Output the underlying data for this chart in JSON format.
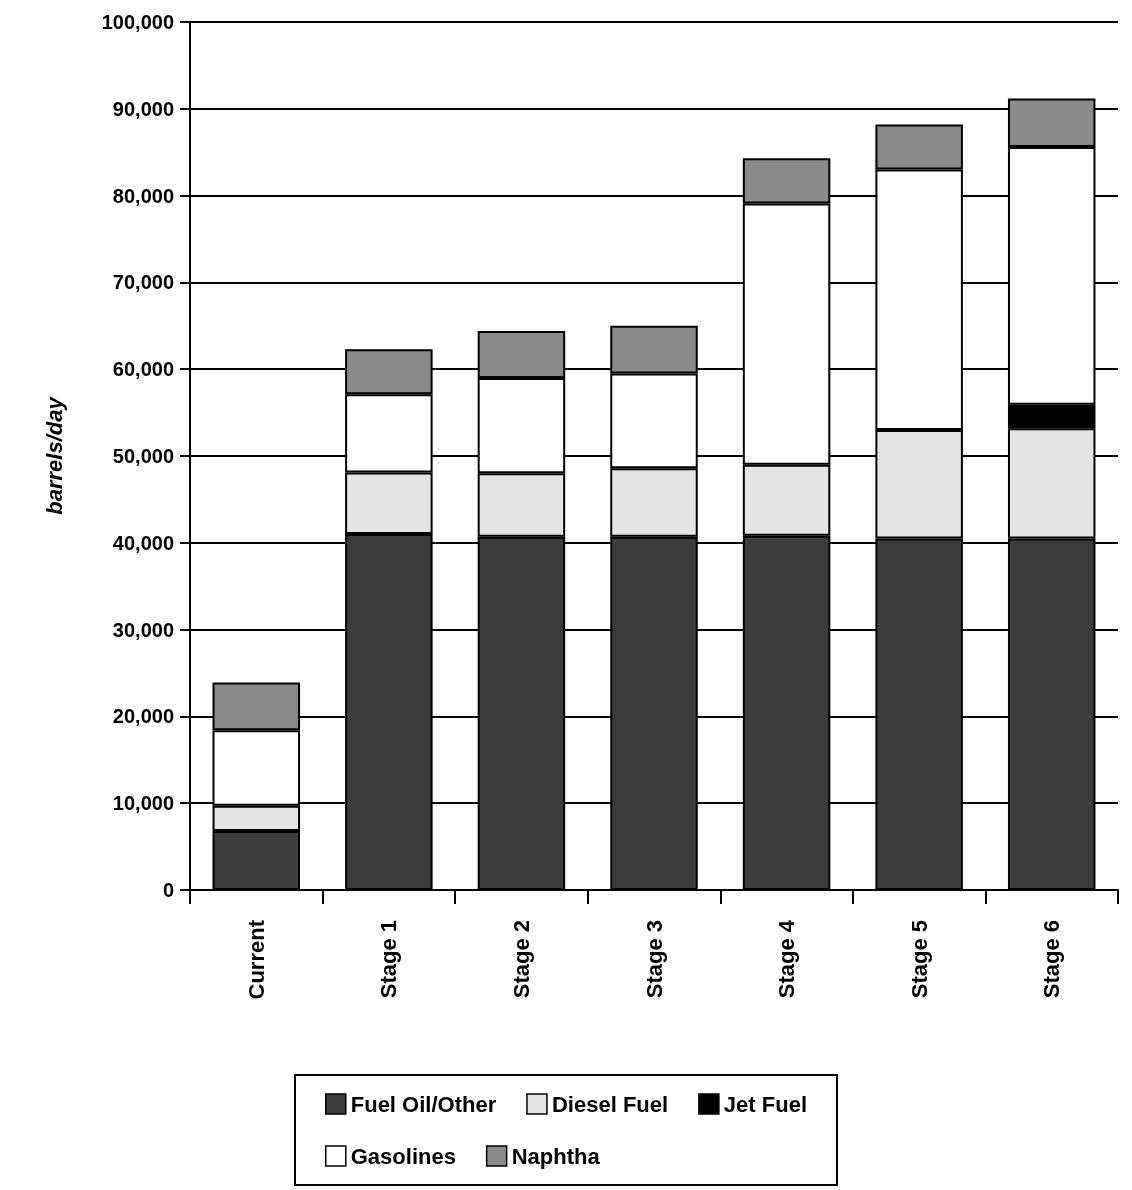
{
  "chart_data": {
    "type": "bar",
    "stacked": true,
    "ylabel": "barrels/day",
    "categories": [
      "Current",
      "Stage 1",
      "Stage 2",
      "Stage 3",
      "Stage 4",
      "Stage 5",
      "Stage 6"
    ],
    "series": [
      {
        "name": "Fuel Oil/Other",
        "color": "#3c3c3c",
        "values": [
          6800,
          41000,
          40700,
          40700,
          40800,
          40500,
          40500
        ]
      },
      {
        "name": "Diesel Fuel",
        "color": "#e4e4e4",
        "values": [
          2900,
          7100,
          7300,
          7900,
          8200,
          12500,
          12700
        ]
      },
      {
        "name": "Jet Fuel",
        "color": "#000000",
        "values": [
          null,
          null,
          null,
          null,
          null,
          null,
          2700
        ]
      },
      {
        "name": "Gasolines",
        "color": "#ffffff",
        "values": [
          8700,
          9000,
          11000,
          10900,
          30100,
          30000,
          29700
        ]
      },
      {
        "name": "Naphtha",
        "color": "#8a8a8a",
        "values": [
          5500,
          5200,
          5400,
          5500,
          5200,
          5200,
          5600
        ]
      }
    ],
    "ylim": [
      0,
      100000
    ],
    "yticks": [
      0,
      {
        "value": 10000,
        "label": "10,000"
      },
      {
        "value": 20000,
        "label": "20,000"
      },
      {
        "value": 30000,
        "label": "30,000"
      },
      {
        "value": 40000,
        "label": "40,000"
      },
      {
        "value": 50000,
        "label": "50,000"
      },
      {
        "value": 60000,
        "label": "60,000"
      },
      {
        "value": 70000,
        "label": "70,000"
      },
      {
        "value": 80000,
        "label": "80,000"
      },
      {
        "value": 90000,
        "label": "90,000"
      },
      {
        "value": 100000,
        "label": "100,000"
      }
    ],
    "grid": "y",
    "legend": "bottom"
  }
}
